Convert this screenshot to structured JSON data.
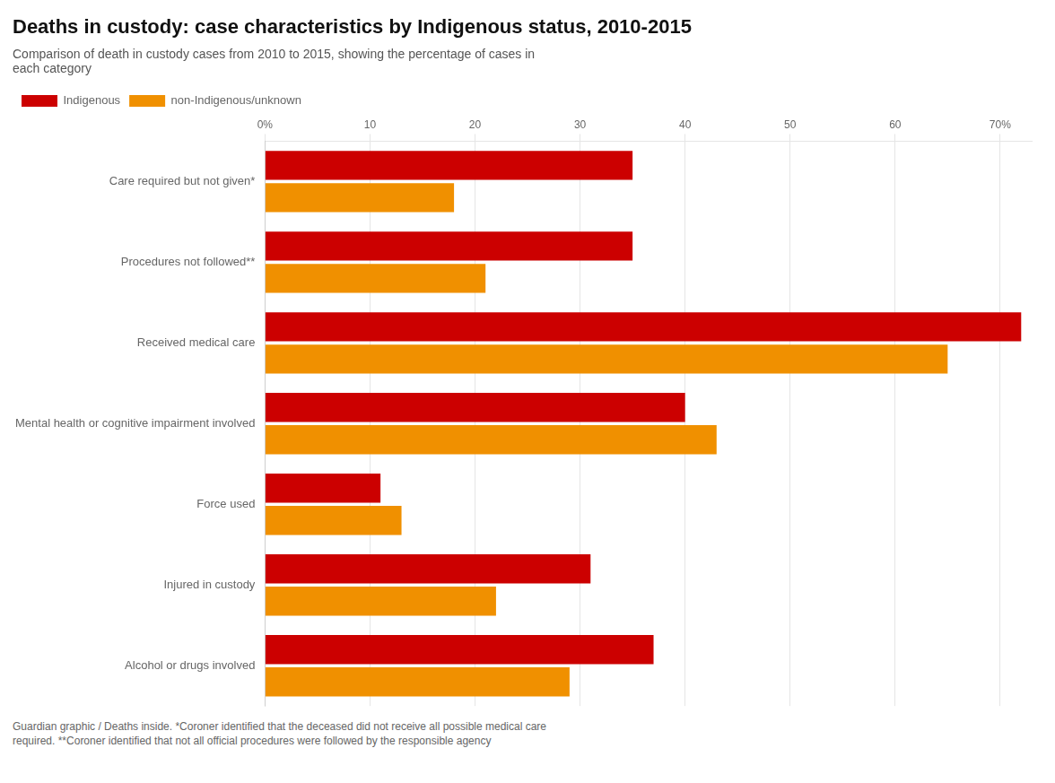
{
  "chart_data": {
    "type": "bar",
    "orientation": "horizontal",
    "title": "Deaths in custody: case characteristics by Indigenous status, 2010-2015",
    "subtitle": "Comparison of death in custody cases from 2010 to 2015, showing the percentage of cases in\neach category",
    "footer": "Guardian graphic / Deaths inside. *Coroner identified that the deceased did not receive all possible medical care\nrequired. **Coroner identified that not all official procedures were followed by the responsible agency",
    "categories": [
      "Care required but not given*",
      "Procedures not followed**",
      "Received medical care",
      "Mental health or cognitive impairment involved",
      "Force used",
      "Injured in custody",
      "Alcohol or drugs involved"
    ],
    "series": [
      {
        "name": "Indigenous",
        "color": "#cc0000",
        "values": [
          35,
          35,
          72,
          40,
          11,
          31,
          37
        ]
      },
      {
        "name": "non-Indigenous/unknown",
        "color": "#f09000",
        "values": [
          18,
          21,
          65,
          43,
          13,
          22,
          29
        ]
      }
    ],
    "xlim": [
      0,
      73
    ],
    "xticks": [
      {
        "value": 0,
        "label": "0%"
      },
      10,
      20,
      30,
      40,
      50,
      60,
      {
        "value": 70,
        "label": "70%"
      }
    ],
    "grid": true,
    "legend": "top"
  }
}
